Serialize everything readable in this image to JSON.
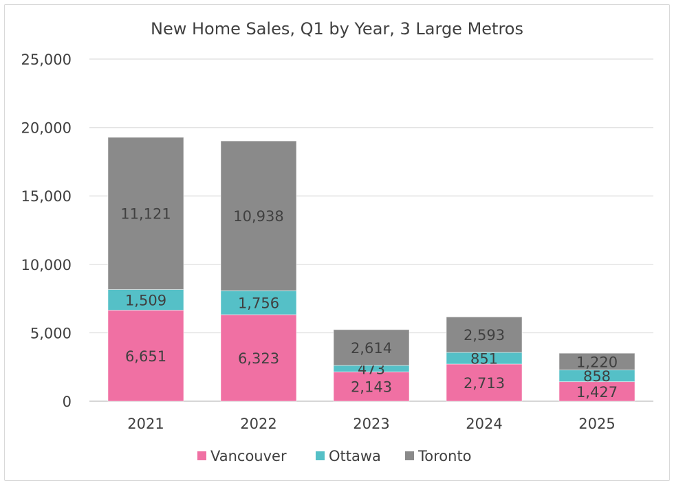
{
  "chart_data": {
    "type": "bar",
    "stacked": true,
    "title": "New Home Sales, Q1 by Year, 3 Large Metros",
    "xlabel": "",
    "ylabel": "",
    "categories": [
      "2021",
      "2022",
      "2023",
      "2024",
      "2025"
    ],
    "series": [
      {
        "name": "Vancouver",
        "color": "#F070A3",
        "values": [
          6651,
          6323,
          2143,
          2713,
          1427
        ],
        "labels": [
          "6,651",
          "6,323",
          "2,143",
          "2,713",
          "1,427"
        ]
      },
      {
        "name": "Ottawa",
        "color": "#55C0C7",
        "values": [
          1509,
          1756,
          473,
          851,
          858
        ],
        "labels": [
          "1,509",
          "1,756",
          "473",
          "851",
          "858"
        ]
      },
      {
        "name": "Toronto",
        "color": "#8A8A8A",
        "values": [
          11121,
          10938,
          2614,
          2593,
          1220
        ],
        "labels": [
          "11,121",
          "10,938",
          "2,614",
          "2,593",
          "1,220"
        ]
      }
    ],
    "ylim": [
      0,
      25000
    ],
    "yticks": [
      0,
      5000,
      10000,
      15000,
      20000,
      25000
    ],
    "ytick_labels": [
      "0",
      "5,000",
      "10,000",
      "15,000",
      "20,000",
      "25,000"
    ],
    "grid": true,
    "legend": "bottom"
  }
}
